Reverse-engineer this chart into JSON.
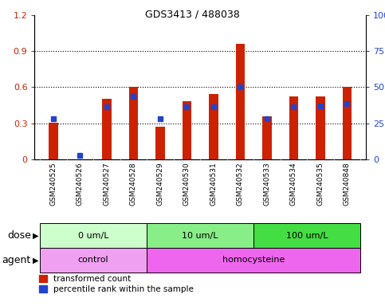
{
  "title": "GDS3413 / 488038",
  "samples": [
    "GSM240525",
    "GSM240526",
    "GSM240527",
    "GSM240528",
    "GSM240529",
    "GSM240530",
    "GSM240531",
    "GSM240532",
    "GSM240533",
    "GSM240534",
    "GSM240535",
    "GSM240848"
  ],
  "red_values": [
    0.305,
    0.0,
    0.5,
    0.6,
    0.27,
    0.485,
    0.545,
    0.96,
    0.36,
    0.52,
    0.52,
    0.6
  ],
  "blue_values": [
    0.335,
    0.03,
    0.44,
    0.52,
    0.335,
    0.44,
    0.44,
    0.6,
    0.34,
    0.44,
    0.445,
    0.46
  ],
  "ylim_left": [
    0,
    1.2
  ],
  "ylim_right": [
    0,
    100
  ],
  "yticks_left": [
    0,
    0.3,
    0.6,
    0.9,
    1.2
  ],
  "yticks_right": [
    0,
    25,
    50,
    75,
    100
  ],
  "ytick_labels_right": [
    "0",
    "25",
    "50",
    "75",
    "100%"
  ],
  "red_color": "#cc2200",
  "blue_color": "#2244cc",
  "dose_groups": [
    {
      "label": "0 um/L",
      "start": 0,
      "end": 4,
      "color": "#ccffcc"
    },
    {
      "label": "10 um/L",
      "start": 4,
      "end": 8,
      "color": "#88ee88"
    },
    {
      "label": "100 um/L",
      "start": 8,
      "end": 12,
      "color": "#44dd44"
    }
  ],
  "agent_groups": [
    {
      "label": "control",
      "start": 0,
      "end": 4,
      "color": "#f0a0f0"
    },
    {
      "label": "homocysteine",
      "start": 4,
      "end": 12,
      "color": "#ee66ee"
    }
  ],
  "dose_label": "dose",
  "agent_label": "agent",
  "legend_red": "transformed count",
  "legend_blue": "percentile rank within the sample",
  "bar_width": 0.35,
  "xtick_bg_color": "#cccccc",
  "gridline_color": "black"
}
